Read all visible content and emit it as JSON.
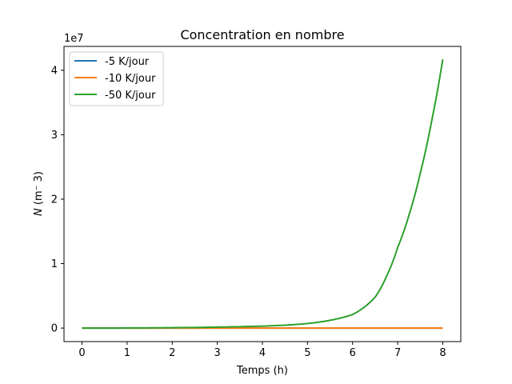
{
  "chart_data": {
    "type": "line",
    "title": "Concentration en nombre",
    "xlabel": "Temps (h)",
    "ylabel_italic": "N",
    "ylabel_rest": " (m⁻ 3)",
    "offset_text": "1e7",
    "xlim": [
      -0.4,
      8.4
    ],
    "ylim": [
      -2100000,
      43700000
    ],
    "x_ticks": [
      0,
      1,
      2,
      3,
      4,
      5,
      6,
      7,
      8
    ],
    "x_tick_labels": [
      "0",
      "1",
      "2",
      "3",
      "4",
      "5",
      "6",
      "7",
      "8"
    ],
    "y_ticks": [
      0,
      10000000,
      20000000,
      30000000,
      40000000
    ],
    "y_tick_labels": [
      "0",
      "1",
      "2",
      "3",
      "4"
    ],
    "grid": false,
    "legend_position": "upper left",
    "series": [
      {
        "name": "-5 K/jour",
        "color": "#1f77b4",
        "x": [
          0,
          1,
          2,
          3,
          4,
          5,
          6,
          7,
          8
        ],
        "y": [
          0,
          0,
          0,
          0,
          0,
          0,
          0,
          0,
          0
        ]
      },
      {
        "name": "-10 K/jour",
        "color": "#ff7f0e",
        "x": [
          0,
          1,
          2,
          3,
          4,
          5,
          6,
          7,
          8
        ],
        "y": [
          0,
          0,
          0,
          0,
          0,
          0,
          0,
          0,
          0
        ]
      },
      {
        "name": "-50 K/jour",
        "color": "#2ca02c",
        "x": [
          0,
          1,
          2,
          3,
          4,
          4.5,
          5,
          5.5,
          6,
          6.25,
          6.5,
          6.75,
          7,
          7.25,
          7.5,
          7.75,
          8
        ],
        "y": [
          0,
          20000,
          60000,
          150000,
          300000,
          450000,
          700000,
          1200000,
          2100000,
          3200000,
          4800000,
          8000000,
          12500000,
          17500000,
          24000000,
          32000000,
          41700000
        ]
      }
    ]
  }
}
